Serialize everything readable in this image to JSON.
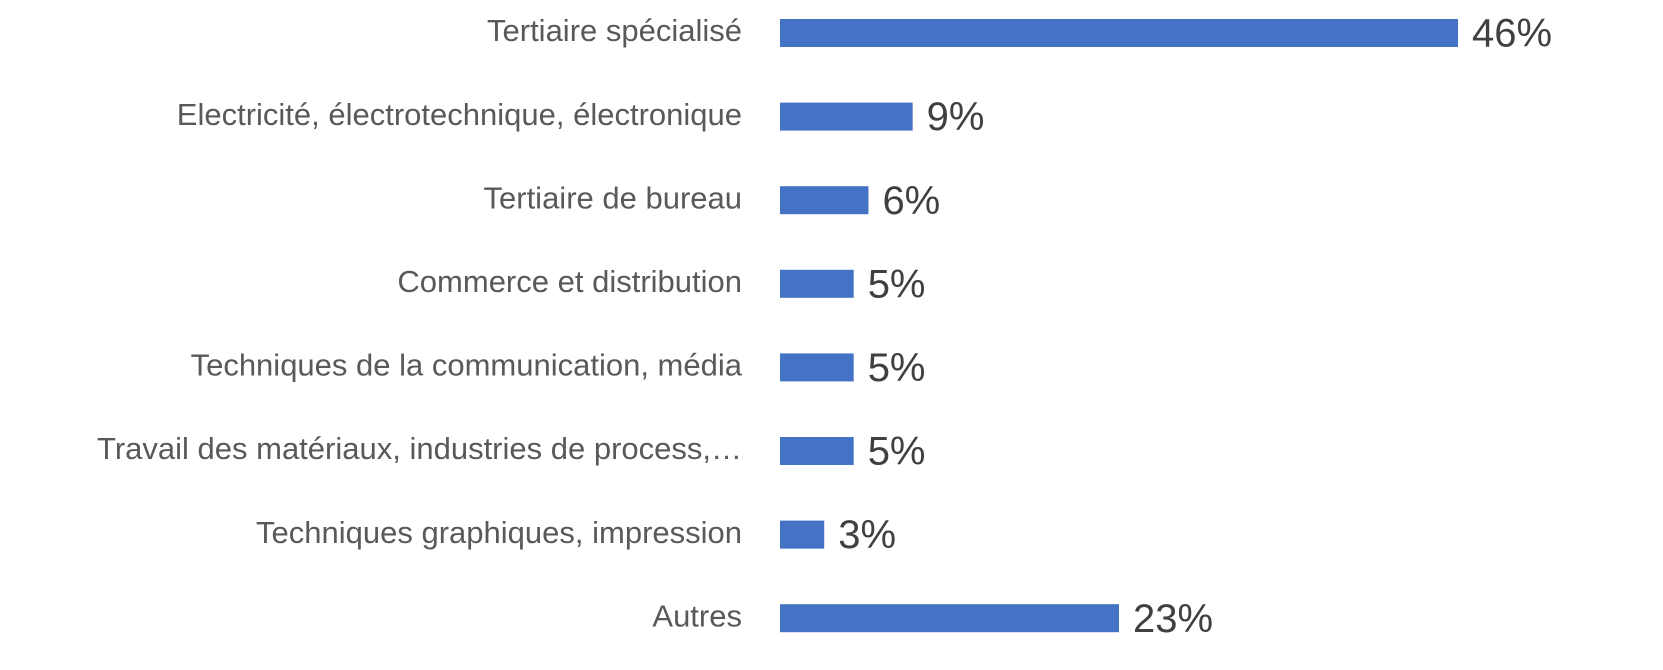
{
  "chart_data": {
    "type": "bar",
    "orientation": "horizontal",
    "categories": [
      "Tertiaire spécialisé",
      "Electricité, électrotechnique, électronique",
      "Tertiaire de bureau",
      "Commerce et distribution",
      "Techniques de la communication, média",
      "Travail des matériaux, industries de process,…",
      "Techniques graphiques, impression",
      "Autres"
    ],
    "values": [
      46,
      9,
      6,
      5,
      5,
      5,
      3,
      23
    ],
    "value_labels": [
      "46%",
      "9%",
      "6%",
      "5%",
      "5%",
      "5%",
      "3%",
      "23%"
    ],
    "color": "#4472c4"
  }
}
